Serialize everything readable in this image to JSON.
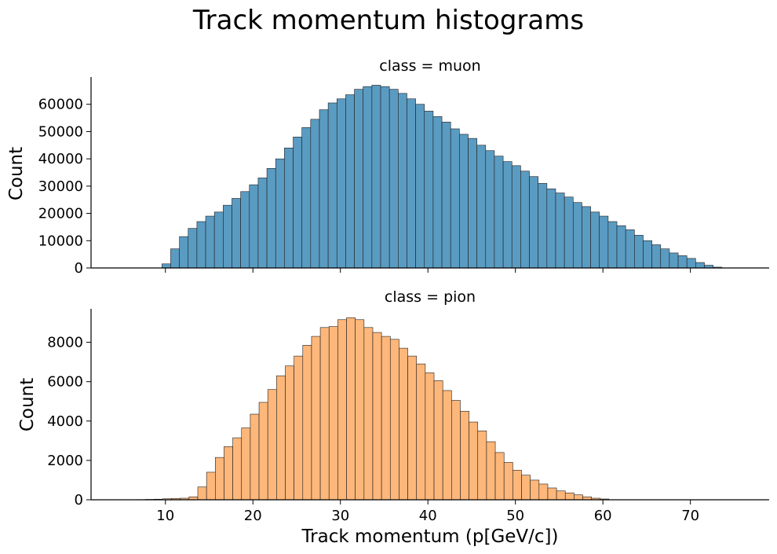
{
  "figure": {
    "title": "Track momentum histograms",
    "xlabel": "Track momentum (p[GeV/c])",
    "xticks": [
      "10",
      "20",
      "30",
      "40",
      "50",
      "60",
      "70"
    ]
  },
  "chart_data": [
    {
      "type": "histogram",
      "title": "class = muon",
      "ylabel": "Count",
      "color": "#5a9bc2",
      "edge_color": "#1f1f1f",
      "xlim": [
        1.5,
        79
      ],
      "ylim": [
        0,
        70000
      ],
      "yticks": [
        "0",
        "10000",
        "20000",
        "30000",
        "40000",
        "50000",
        "60000"
      ],
      "bin_start": 9.6,
      "bin_width": 1.0,
      "values": [
        1500,
        7000,
        11500,
        14500,
        17000,
        19000,
        20500,
        23000,
        25500,
        28000,
        30500,
        33000,
        36500,
        40000,
        44000,
        48000,
        51500,
        54500,
        58000,
        60500,
        62000,
        63500,
        65500,
        66500,
        67000,
        66500,
        65500,
        64000,
        62000,
        60000,
        57500,
        55500,
        53500,
        51000,
        49000,
        47500,
        45000,
        43000,
        41000,
        39000,
        37500,
        35500,
        33500,
        31000,
        29000,
        27500,
        26000,
        24000,
        22500,
        20500,
        19000,
        17000,
        15500,
        14000,
        12000,
        10000,
        8500,
        7000,
        5500,
        4500,
        3500,
        2000,
        1000,
        300
      ]
    },
    {
      "type": "histogram",
      "title": "class = pion",
      "ylabel": "Count",
      "color": "#fdb77a",
      "edge_color": "#1f1f1f",
      "xlim": [
        1.5,
        79
      ],
      "ylim": [
        0,
        9700
      ],
      "yticks": [
        "0",
        "2000",
        "4000",
        "6000",
        "8000"
      ],
      "bin_start": 6.7,
      "bin_width": 1.0,
      "values": [
        10,
        20,
        30,
        50,
        70,
        80,
        150,
        650,
        1400,
        2150,
        2700,
        3150,
        3650,
        4350,
        4950,
        5600,
        6300,
        6800,
        7300,
        7850,
        8300,
        8750,
        8800,
        9150,
        9250,
        9150,
        8750,
        8500,
        8300,
        8150,
        7700,
        7300,
        6900,
        6450,
        6050,
        5550,
        5050,
        4500,
        3950,
        3500,
        2950,
        2400,
        1900,
        1500,
        1250,
        1000,
        800,
        600,
        450,
        350,
        250,
        150,
        80,
        40
      ]
    }
  ]
}
